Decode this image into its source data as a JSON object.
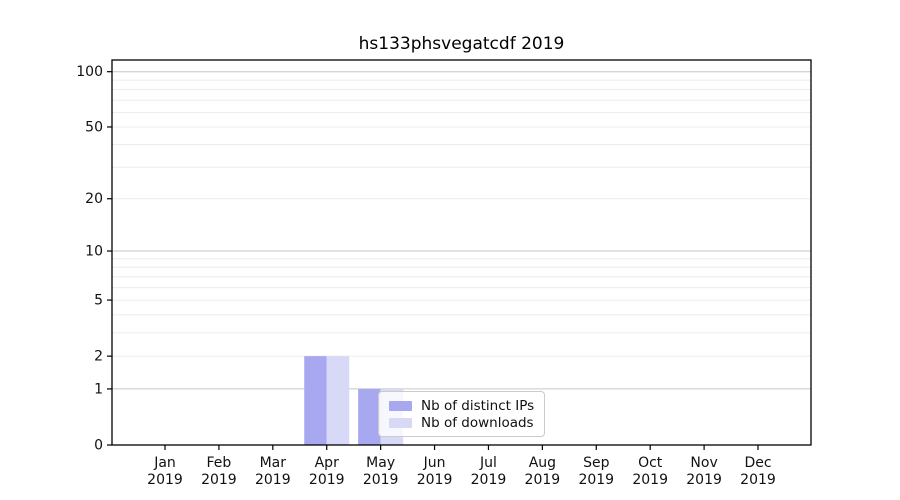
{
  "title": "hs133phsvegatcdf 2019",
  "chart_data": {
    "type": "bar",
    "title": "hs133phsvegatcdf 2019",
    "categories": [
      "Jan",
      "Feb",
      "Mar",
      "Apr",
      "May",
      "Jun",
      "Jul",
      "Aug",
      "Sep",
      "Oct",
      "Nov",
      "Dec"
    ],
    "year_label": "2019",
    "series": [
      {
        "name": "Nb of distinct IPs",
        "color": "#a8a8f0",
        "values": [
          0,
          0,
          0,
          2,
          1,
          0,
          0,
          0,
          0,
          0,
          0,
          0
        ]
      },
      {
        "name": "Nb of downloads",
        "color": "#d8d8f7",
        "values": [
          0,
          0,
          0,
          2,
          1,
          0,
          0,
          0,
          0,
          0,
          0,
          0
        ]
      }
    ],
    "y_scale": "log1p",
    "ylim": [
      0,
      115
    ],
    "y_ticks": [
      0,
      1,
      2,
      5,
      10,
      20,
      50,
      100
    ],
    "y_major_gridlines": [
      1,
      10,
      100
    ],
    "y_minor_gridlines": [
      2,
      3,
      4,
      5,
      6,
      7,
      8,
      9,
      20,
      30,
      40,
      50,
      60,
      70,
      80,
      90
    ],
    "grid": true,
    "legend_position": "lower center-right inside plot",
    "colors": {
      "spine": "#000000",
      "major_grid": "#c6c6c6",
      "minor_grid": "#ececec",
      "tick_label": "#111111",
      "background": "#ffffff"
    }
  }
}
